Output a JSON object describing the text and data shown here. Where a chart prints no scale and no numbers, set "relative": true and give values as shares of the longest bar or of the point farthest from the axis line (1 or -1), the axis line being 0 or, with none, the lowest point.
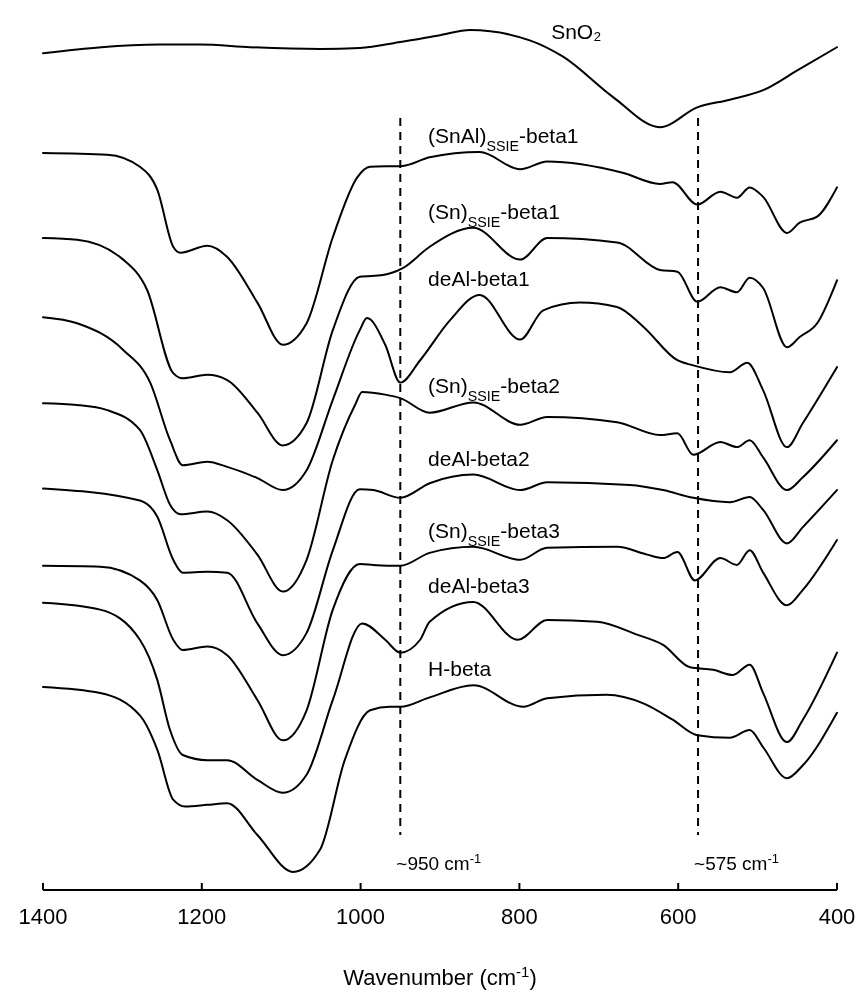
{
  "chart_data": {
    "type": "line",
    "relative": true,
    "xlabel": "Wavenumber (cm$^{-1}$)",
    "xlim": [
      1400,
      400
    ],
    "xticks": [
      1400,
      1200,
      1000,
      800,
      600,
      400
    ],
    "grid": false,
    "legend": false,
    "marker": "none",
    "line_style": "solid",
    "ref_lines": [
      {
        "axis": "x",
        "value": 950,
        "label": "~950 cm$^{-1}$",
        "color": "#000000",
        "line_style": "dashed"
      },
      {
        "axis": "x",
        "value": 575,
        "label": "~575 cm$^{-1}$",
        "color": "#000000",
        "line_style": "dashed"
      }
    ],
    "series": [
      {
        "name": "SnO₂",
        "color": "#000000",
        "x": [
          1400,
          1253,
          1202,
          1139,
          1051,
          1001,
          950,
          900,
          862,
          787,
          745,
          682,
          623,
          576,
          535,
          493,
          450,
          400
        ],
        "values": [
          0.973,
          0.983,
          0.983,
          0.98,
          0.978,
          0.979,
          0.986,
          0.994,
          1.0,
          0.988,
          0.969,
          0.922,
          0.887,
          0.91,
          0.919,
          0.93,
          0.953,
          0.98
        ]
      },
      {
        "name": "(SnAl)$_{SSIE}$-beta1",
        "color": "#000000",
        "x": [
          1400,
          1319,
          1278,
          1256,
          1236,
          1227,
          1193,
          1168,
          1130,
          1098,
          1068,
          1035,
          1004,
          988,
          947,
          913,
          850,
          799,
          765,
          670,
          623,
          607,
          576,
          547,
          526,
          510,
          493,
          463,
          447,
          425,
          400
        ],
        "values": [
          0.857,
          0.855,
          0.841,
          0.814,
          0.748,
          0.741,
          0.749,
          0.736,
          0.683,
          0.634,
          0.659,
          0.759,
          0.829,
          0.841,
          0.842,
          0.852,
          0.858,
          0.838,
          0.847,
          0.834,
          0.821,
          0.823,
          0.797,
          0.812,
          0.805,
          0.817,
          0.806,
          0.764,
          0.776,
          0.783,
          0.817
        ]
      },
      {
        "name": "(Sn)$_{SSIE}$-beta1",
        "color": "#000000",
        "x": [
          1400,
          1357,
          1299,
          1269,
          1236,
          1224,
          1193,
          1168,
          1130,
          1098,
          1068,
          1035,
          1001,
          972,
          947,
          913,
          858,
          799,
          765,
          677,
          623,
          601,
          576,
          547,
          526,
          510,
          493,
          463,
          447,
          425,
          400
        ],
        "values": [
          0.758,
          0.756,
          0.733,
          0.698,
          0.601,
          0.595,
          0.599,
          0.593,
          0.555,
          0.517,
          0.543,
          0.651,
          0.713,
          0.715,
          0.723,
          0.748,
          0.77,
          0.733,
          0.758,
          0.753,
          0.721,
          0.719,
          0.684,
          0.701,
          0.695,
          0.712,
          0.7,
          0.631,
          0.643,
          0.659,
          0.709
        ]
      },
      {
        "name": "deAl-beta1",
        "color": "#000000",
        "x": [
          1400,
          1357,
          1299,
          1265,
          1240,
          1224,
          1193,
          1168,
          1130,
          1098,
          1068,
          1035,
          1001,
          992,
          969,
          950,
          925,
          887,
          850,
          799,
          770,
          724,
          677,
          644,
          601,
          581,
          535,
          513,
          493,
          463,
          443,
          400
        ],
        "values": [
          0.666,
          0.659,
          0.628,
          0.59,
          0.523,
          0.494,
          0.498,
          0.492,
          0.479,
          0.465,
          0.488,
          0.57,
          0.651,
          0.665,
          0.634,
          0.59,
          0.616,
          0.663,
          0.692,
          0.64,
          0.674,
          0.683,
          0.678,
          0.655,
          0.616,
          0.61,
          0.602,
          0.613,
          0.581,
          0.515,
          0.543,
          0.608
        ]
      },
      {
        "name": "(Sn)$_{SSIE}$-beta2",
        "color": "#000000",
        "x": [
          1400,
          1357,
          1319,
          1278,
          1256,
          1240,
          1227,
          1193,
          1168,
          1130,
          1098,
          1068,
          1035,
          1007,
          998,
          969,
          950,
          913,
          858,
          799,
          765,
          677,
          623,
          601,
          581,
          547,
          526,
          510,
          493,
          463,
          443,
          400
        ],
        "values": [
          0.566,
          0.564,
          0.558,
          0.535,
          0.488,
          0.448,
          0.437,
          0.44,
          0.43,
          0.39,
          0.347,
          0.384,
          0.5,
          0.564,
          0.579,
          0.576,
          0.572,
          0.555,
          0.567,
          0.541,
          0.55,
          0.544,
          0.529,
          0.531,
          0.506,
          0.521,
          0.515,
          0.523,
          0.503,
          0.465,
          0.48,
          0.523
        ]
      },
      {
        "name": "deAl-beta2",
        "color": "#000000",
        "x": [
          1400,
          1278,
          1256,
          1236,
          1224,
          1193,
          1168,
          1130,
          1098,
          1068,
          1035,
          1001,
          984,
          950,
          913,
          858,
          799,
          765,
          661,
          619,
          581,
          535,
          510,
          493,
          463,
          443,
          400
        ],
        "values": [
          0.467,
          0.453,
          0.434,
          0.384,
          0.369,
          0.37,
          0.369,
          0.31,
          0.273,
          0.299,
          0.395,
          0.466,
          0.465,
          0.456,
          0.473,
          0.483,
          0.465,
          0.474,
          0.471,
          0.465,
          0.456,
          0.451,
          0.457,
          0.442,
          0.403,
          0.422,
          0.465
        ]
      },
      {
        "name": "(Sn)$_{SSIE}$-beta3",
        "color": "#000000",
        "x": [
          1400,
          1328,
          1278,
          1256,
          1236,
          1224,
          1193,
          1168,
          1130,
          1098,
          1068,
          1035,
          1001,
          984,
          950,
          913,
          858,
          799,
          765,
          677,
          639,
          619,
          601,
          579,
          547,
          526,
          510,
          493,
          463,
          443,
          400
        ],
        "values": [
          0.377,
          0.376,
          0.36,
          0.337,
          0.291,
          0.279,
          0.283,
          0.273,
          0.221,
          0.174,
          0.209,
          0.326,
          0.379,
          0.378,
          0.377,
          0.392,
          0.399,
          0.384,
          0.398,
          0.399,
          0.39,
          0.386,
          0.393,
          0.36,
          0.386,
          0.378,
          0.395,
          0.369,
          0.331,
          0.349,
          0.407
        ]
      },
      {
        "name": "deAl-beta3",
        "color": "#000000",
        "x": [
          1400,
          1328,
          1278,
          1256,
          1240,
          1224,
          1193,
          1168,
          1130,
          1098,
          1068,
          1035,
          998,
          969,
          950,
          925,
          913,
          858,
          802,
          765,
          702,
          652,
          619,
          585,
          556,
          531,
          510,
          493,
          463,
          443,
          400
        ],
        "values": [
          0.334,
          0.326,
          0.291,
          0.244,
          0.186,
          0.157,
          0.151,
          0.151,
          0.128,
          0.113,
          0.134,
          0.221,
          0.31,
          0.291,
          0.276,
          0.291,
          0.312,
          0.335,
          0.291,
          0.314,
          0.312,
          0.297,
          0.285,
          0.259,
          0.256,
          0.25,
          0.262,
          0.229,
          0.172,
          0.198,
          0.276
        ]
      },
      {
        "name": "H-beta",
        "color": "#000000",
        "x": [
          1400,
          1328,
          1278,
          1256,
          1236,
          1221,
          1193,
          1168,
          1130,
          1085,
          1051,
          1020,
          988,
          963,
          950,
          913,
          858,
          795,
          765,
          690,
          644,
          607,
          576,
          535,
          510,
          493,
          463,
          443,
          400
        ],
        "values": [
          0.236,
          0.229,
          0.203,
          0.163,
          0.105,
          0.097,
          0.099,
          0.101,
          0.064,
          0.021,
          0.047,
          0.151,
          0.209,
          0.213,
          0.213,
          0.224,
          0.238,
          0.213,
          0.223,
          0.227,
          0.217,
          0.198,
          0.18,
          0.177,
          0.186,
          0.166,
          0.13,
          0.145,
          0.206
        ]
      }
    ]
  }
}
